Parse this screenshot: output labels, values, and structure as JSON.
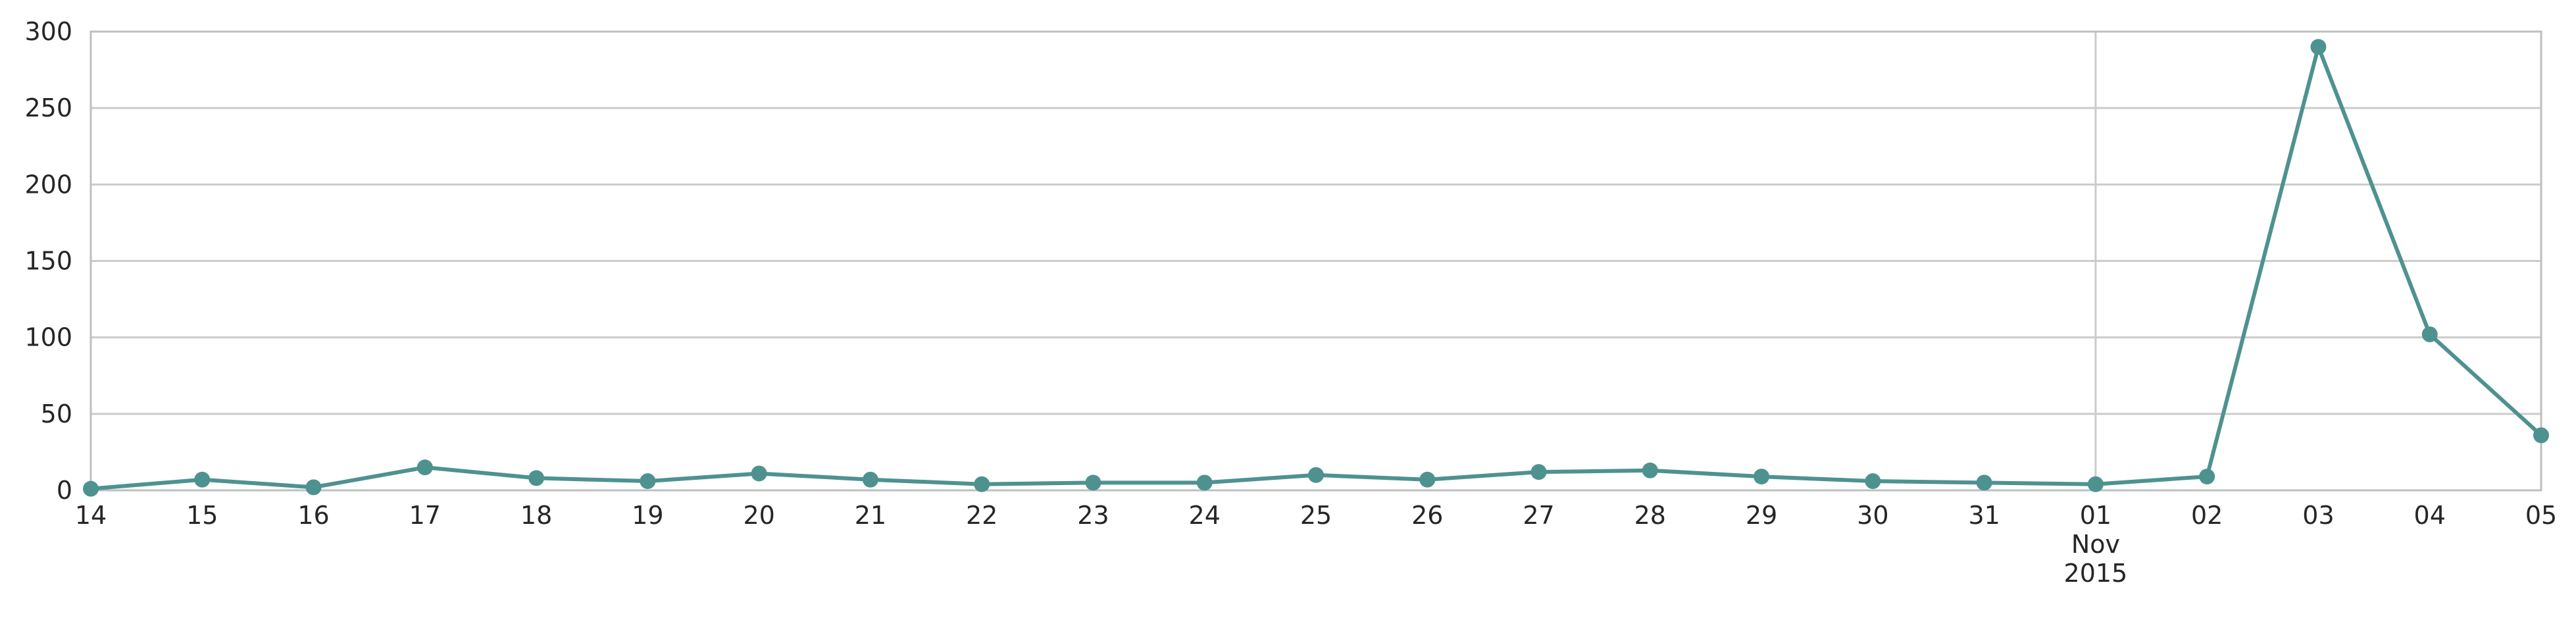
{
  "chart_data": {
    "type": "line",
    "title": "",
    "xlabel": "",
    "ylabel": "",
    "x": [
      "2015-10-14",
      "2015-10-15",
      "2015-10-16",
      "2015-10-17",
      "2015-10-18",
      "2015-10-19",
      "2015-10-20",
      "2015-10-21",
      "2015-10-22",
      "2015-10-23",
      "2015-10-24",
      "2015-10-25",
      "2015-10-26",
      "2015-10-27",
      "2015-10-28",
      "2015-10-29",
      "2015-10-30",
      "2015-10-31",
      "2015-11-01",
      "2015-11-02",
      "2015-11-03",
      "2015-11-04",
      "2015-11-05"
    ],
    "series": [
      {
        "values": [
          1,
          7,
          2,
          15,
          8,
          6,
          11,
          7,
          4,
          5,
          5,
          10,
          7,
          12,
          13,
          9,
          6,
          5,
          4,
          9,
          290,
          102,
          36
        ]
      }
    ],
    "ylim": [
      0,
      300
    ],
    "yticks": [
      "0",
      "50",
      "100",
      "150",
      "200",
      "250",
      "300"
    ],
    "xtick_labels": [
      {
        "line1": "14"
      },
      {
        "line1": "15"
      },
      {
        "line1": "16"
      },
      {
        "line1": "17"
      },
      {
        "line1": "18"
      },
      {
        "line1": "19"
      },
      {
        "line1": "20"
      },
      {
        "line1": "21"
      },
      {
        "line1": "22"
      },
      {
        "line1": "23"
      },
      {
        "line1": "24"
      },
      {
        "line1": "25"
      },
      {
        "line1": "26"
      },
      {
        "line1": "27"
      },
      {
        "line1": "28"
      },
      {
        "line1": "29"
      },
      {
        "line1": "30"
      },
      {
        "line1": "31"
      },
      {
        "line1": "01",
        "line2": "Nov",
        "line3": "2015"
      },
      {
        "line1": "02"
      },
      {
        "line1": "03"
      },
      {
        "line1": "04"
      },
      {
        "line1": "05"
      }
    ],
    "grid": true,
    "line_color": "#4e9290"
  }
}
